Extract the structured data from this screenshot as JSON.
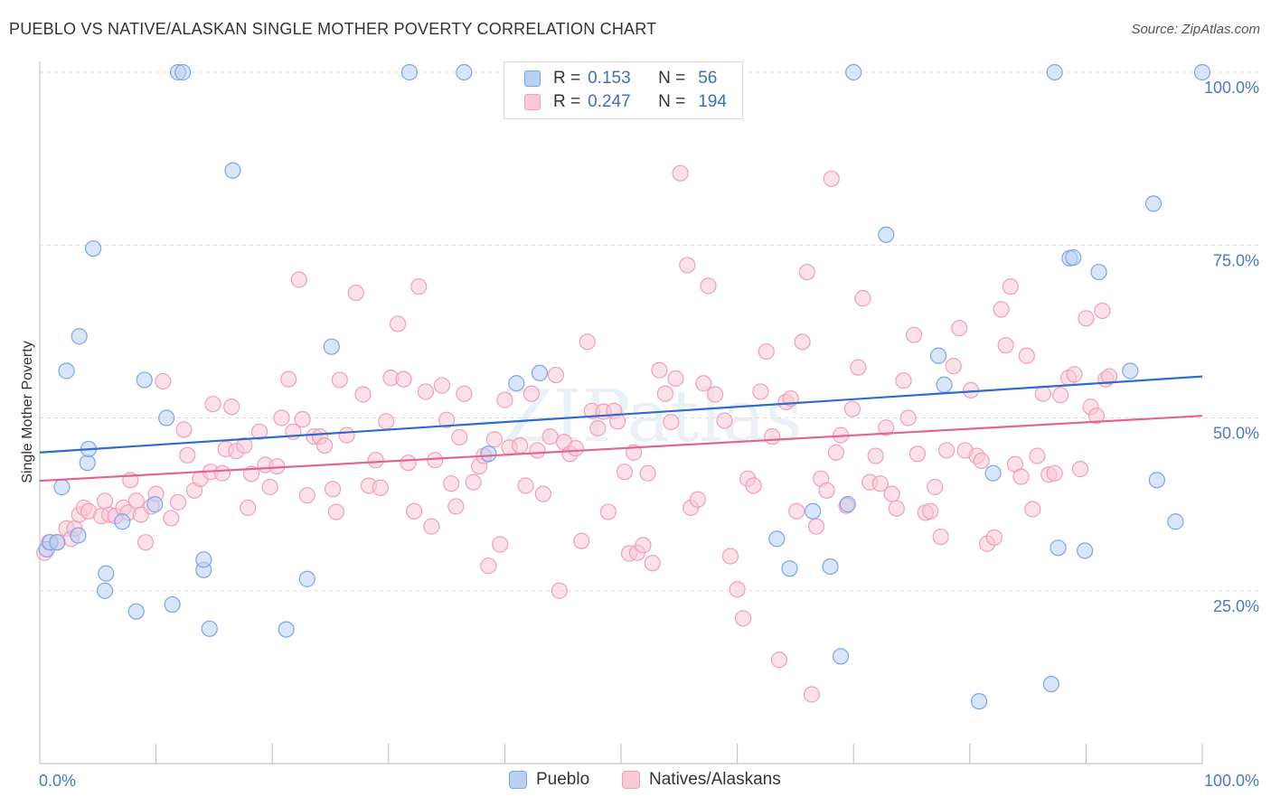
{
  "title": "PUEBLO VS NATIVE/ALASKAN SINGLE MOTHER POVERTY CORRELATION CHART",
  "source": "Source: ZipAtlas.com",
  "watermark": "ZIPatlas",
  "legend": {
    "r_label": "R =",
    "n_label": "N =",
    "rows": [
      {
        "r": "0.153",
        "n": "56"
      },
      {
        "r": "0.247",
        "n": "194"
      }
    ]
  },
  "chart_data": {
    "type": "scatter",
    "title": "PUEBLO VS NATIVE/ALASKAN SINGLE MOTHER POVERTY CORRELATION CHART",
    "xlabel": "",
    "ylabel": "Single Mother Poverty",
    "xlim": [
      0,
      100
    ],
    "ylim": [
      0,
      100
    ],
    "x_tick_labels": [
      "0.0%",
      "100.0%"
    ],
    "y_tick_labels": [
      "25.0%",
      "50.0%",
      "75.0%",
      "100.0%"
    ],
    "y_ticks": [
      25,
      50,
      75,
      100
    ],
    "grid": "horizontal dashed",
    "legend_position": "top-center",
    "series": [
      {
        "name": "Pueblo",
        "color": "#7aa6e8",
        "fill": "#b9d0f3",
        "line_color": "#2e6bcc",
        "trend": {
          "x": [
            0,
            100
          ],
          "y": [
            45.0,
            56.0
          ]
        },
        "points": [
          [
            0.6,
            31
          ],
          [
            0.9,
            32
          ],
          [
            1.5,
            32
          ],
          [
            3.3,
            33
          ],
          [
            1.9,
            40
          ],
          [
            2.3,
            56.8
          ],
          [
            3.4,
            61.8
          ],
          [
            4.1,
            43.5
          ],
          [
            4.2,
            45.5
          ],
          [
            4.6,
            74.5
          ],
          [
            5.6,
            25
          ],
          [
            5.7,
            27.5
          ],
          [
            7.1,
            35
          ],
          [
            8.3,
            22
          ],
          [
            9.0,
            55.5
          ],
          [
            9.9,
            37.5
          ],
          [
            10.9,
            50
          ],
          [
            11.4,
            23
          ],
          [
            11.9,
            100
          ],
          [
            12.3,
            100
          ],
          [
            14.1,
            28
          ],
          [
            14.1,
            29.5
          ],
          [
            14.6,
            19.5
          ],
          [
            16.6,
            85.8
          ],
          [
            21.2,
            19.4
          ],
          [
            23.0,
            26.7
          ],
          [
            25.1,
            60.3
          ],
          [
            31.8,
            100
          ],
          [
            36.5,
            100
          ],
          [
            38.6,
            44.8
          ],
          [
            41.0,
            55
          ],
          [
            43.0,
            56.5
          ],
          [
            63.4,
            32.5
          ],
          [
            64.5,
            28.2
          ],
          [
            66.5,
            36.5
          ],
          [
            68.0,
            28.5
          ],
          [
            68.9,
            15.5
          ],
          [
            69.5,
            37.5
          ],
          [
            70.0,
            100
          ],
          [
            72.8,
            76.5
          ],
          [
            77.3,
            59
          ],
          [
            77.8,
            54.8
          ],
          [
            80.8,
            9
          ],
          [
            82.0,
            42
          ],
          [
            87.0,
            11.5
          ],
          [
            87.3,
            100
          ],
          [
            87.6,
            31.2
          ],
          [
            88.6,
            73.1
          ],
          [
            88.9,
            73.2
          ],
          [
            89.9,
            30.8
          ],
          [
            91.1,
            71.1
          ],
          [
            93.8,
            56.8
          ],
          [
            95.8,
            81
          ],
          [
            96.1,
            41
          ],
          [
            97.7,
            35
          ],
          [
            100.0,
            100
          ]
        ]
      },
      {
        "name": "Natives/Alaskans",
        "color": "#f0a0b8",
        "fill": "#f9c9d6",
        "line_color": "#e0668f",
        "trend": {
          "x": [
            0,
            100
          ],
          "y": [
            40.9,
            50.3
          ]
        },
        "points": [
          [
            0.4,
            30.5
          ],
          [
            0.8,
            32
          ],
          [
            1.5,
            32
          ],
          [
            2.3,
            34
          ],
          [
            2.7,
            32.5
          ],
          [
            3.0,
            34
          ],
          [
            3.4,
            36
          ],
          [
            3.8,
            37
          ],
          [
            4.2,
            36.5
          ],
          [
            5.3,
            35.8
          ],
          [
            5.6,
            38
          ],
          [
            6.0,
            36
          ],
          [
            6.5,
            35.8
          ],
          [
            7.2,
            37
          ],
          [
            7.6,
            36.3
          ],
          [
            7.8,
            41
          ],
          [
            8.3,
            38
          ],
          [
            8.7,
            36
          ],
          [
            9.1,
            32
          ],
          [
            9.6,
            37.2
          ],
          [
            10.0,
            39
          ],
          [
            10.6,
            55.3
          ],
          [
            11.3,
            35.5
          ],
          [
            11.9,
            37.8
          ],
          [
            12.4,
            48.3
          ],
          [
            12.7,
            44.6
          ],
          [
            13.3,
            39.5
          ],
          [
            13.8,
            41.2
          ],
          [
            14.7,
            42.2
          ],
          [
            14.9,
            52
          ],
          [
            15.7,
            42
          ],
          [
            16.0,
            45.5
          ],
          [
            16.5,
            51.6
          ],
          [
            16.9,
            45.2
          ],
          [
            17.6,
            46
          ],
          [
            17.9,
            37
          ],
          [
            18.2,
            41.9
          ],
          [
            18.9,
            48
          ],
          [
            19.4,
            43.2
          ],
          [
            19.8,
            40
          ],
          [
            20.4,
            43
          ],
          [
            20.8,
            50
          ],
          [
            21.4,
            55.6
          ],
          [
            21.8,
            48
          ],
          [
            22.3,
            70
          ],
          [
            22.6,
            49.8
          ],
          [
            23.0,
            38.8
          ],
          [
            23.6,
            47.3
          ],
          [
            24.1,
            47.3
          ],
          [
            24.5,
            46
          ],
          [
            25.2,
            39.7
          ],
          [
            25.5,
            36.4
          ],
          [
            25.8,
            55.5
          ],
          [
            26.4,
            47.5
          ],
          [
            27.2,
            68.1
          ],
          [
            27.8,
            53.4
          ],
          [
            28.3,
            40.2
          ],
          [
            28.9,
            43.9
          ],
          [
            29.3,
            39.9
          ],
          [
            29.8,
            49.5
          ],
          [
            30.2,
            55.8
          ],
          [
            30.8,
            63.6
          ],
          [
            31.3,
            55.6
          ],
          [
            31.7,
            43.5
          ],
          [
            32.2,
            36.5
          ],
          [
            32.6,
            69
          ],
          [
            33.2,
            53.8
          ],
          [
            33.7,
            34.3
          ],
          [
            34.0,
            43.9
          ],
          [
            34.6,
            54.7
          ],
          [
            35.0,
            49.7
          ],
          [
            35.4,
            40.5
          ],
          [
            35.8,
            37.2
          ],
          [
            36.1,
            47.2
          ],
          [
            36.5,
            53.5
          ],
          [
            37.3,
            40.7
          ],
          [
            37.8,
            43
          ],
          [
            38.2,
            44.5
          ],
          [
            38.6,
            28.6
          ],
          [
            39.1,
            46.9
          ],
          [
            39.6,
            31.7
          ],
          [
            40.0,
            52.6
          ],
          [
            40.4,
            45.7
          ],
          [
            41.3,
            46
          ],
          [
            41.8,
            40.2
          ],
          [
            42.3,
            53.5
          ],
          [
            42.8,
            45.3
          ],
          [
            43.3,
            39
          ],
          [
            43.9,
            47.3
          ],
          [
            44.4,
            56.2
          ],
          [
            44.7,
            25
          ],
          [
            45.1,
            46.5
          ],
          [
            45.6,
            44.8
          ],
          [
            46.1,
            45.6
          ],
          [
            46.6,
            32.2
          ],
          [
            47.1,
            61
          ],
          [
            47.5,
            51
          ],
          [
            48.0,
            48.5
          ],
          [
            48.5,
            50.9
          ],
          [
            48.9,
            36.4
          ],
          [
            49.4,
            51
          ],
          [
            49.7,
            49.5
          ],
          [
            50.3,
            42.2
          ],
          [
            50.7,
            30.4
          ],
          [
            51.1,
            45
          ],
          [
            51.4,
            30.5
          ],
          [
            51.9,
            31.6
          ],
          [
            52.3,
            42
          ],
          [
            52.7,
            29
          ],
          [
            53.3,
            56.9
          ],
          [
            53.8,
            53.5
          ],
          [
            54.3,
            49.4
          ],
          [
            54.7,
            55.7
          ],
          [
            55.1,
            85.4
          ],
          [
            55.7,
            72.1
          ],
          [
            56.0,
            37
          ],
          [
            56.6,
            38.2
          ],
          [
            57.1,
            55
          ],
          [
            57.5,
            69.1
          ],
          [
            58.1,
            53.4
          ],
          [
            58.9,
            49.6
          ],
          [
            59.4,
            30
          ],
          [
            60.0,
            25.2
          ],
          [
            60.5,
            21
          ],
          [
            60.9,
            41.2
          ],
          [
            61.4,
            40.2
          ],
          [
            62.0,
            53.8
          ],
          [
            62.5,
            59.6
          ],
          [
            63.0,
            47.3
          ],
          [
            63.6,
            15
          ],
          [
            64.2,
            52.3
          ],
          [
            64.6,
            52.8
          ],
          [
            65.1,
            36.5
          ],
          [
            65.6,
            61
          ],
          [
            66.0,
            71.1
          ],
          [
            66.4,
            10
          ],
          [
            66.8,
            34.3
          ],
          [
            67.2,
            41.2
          ],
          [
            67.7,
            39.5
          ],
          [
            68.1,
            84.6
          ],
          [
            68.5,
            45
          ],
          [
            68.9,
            47.5
          ],
          [
            69.4,
            37.3
          ],
          [
            69.9,
            51.3
          ],
          [
            70.4,
            57.3
          ],
          [
            70.8,
            67.3
          ],
          [
            71.4,
            40.7
          ],
          [
            71.9,
            44.5
          ],
          [
            72.3,
            40.5
          ],
          [
            72.8,
            48.6
          ],
          [
            73.3,
            39
          ],
          [
            73.7,
            36.9
          ],
          [
            74.3,
            55.4
          ],
          [
            74.7,
            50
          ],
          [
            75.2,
            62
          ],
          [
            75.5,
            44.8
          ],
          [
            76.2,
            36.3
          ],
          [
            76.6,
            36.5
          ],
          [
            77.0,
            40
          ],
          [
            77.5,
            32.8
          ],
          [
            78.0,
            45.3
          ],
          [
            78.6,
            57.5
          ],
          [
            79.1,
            63
          ],
          [
            79.6,
            45.3
          ],
          [
            80.1,
            54
          ],
          [
            80.6,
            44.5
          ],
          [
            81.0,
            43.8
          ],
          [
            81.5,
            31.8
          ],
          [
            82.1,
            32.7
          ],
          [
            82.7,
            65.7
          ],
          [
            83.1,
            60.5
          ],
          [
            83.5,
            69
          ],
          [
            83.9,
            43.3
          ],
          [
            84.4,
            41.5
          ],
          [
            84.9,
            59
          ],
          [
            85.4,
            36.8
          ],
          [
            85.8,
            44.5
          ],
          [
            86.3,
            53.5
          ],
          [
            86.8,
            41.8
          ],
          [
            87.3,
            42
          ],
          [
            87.8,
            53.3
          ],
          [
            88.5,
            55.8
          ],
          [
            89.0,
            56.3
          ],
          [
            89.5,
            42.6
          ],
          [
            90.0,
            64.4
          ],
          [
            90.4,
            51.6
          ],
          [
            90.9,
            50.3
          ],
          [
            91.4,
            65.5
          ],
          [
            91.7,
            55.6
          ],
          [
            92.0,
            56
          ]
        ]
      }
    ]
  }
}
